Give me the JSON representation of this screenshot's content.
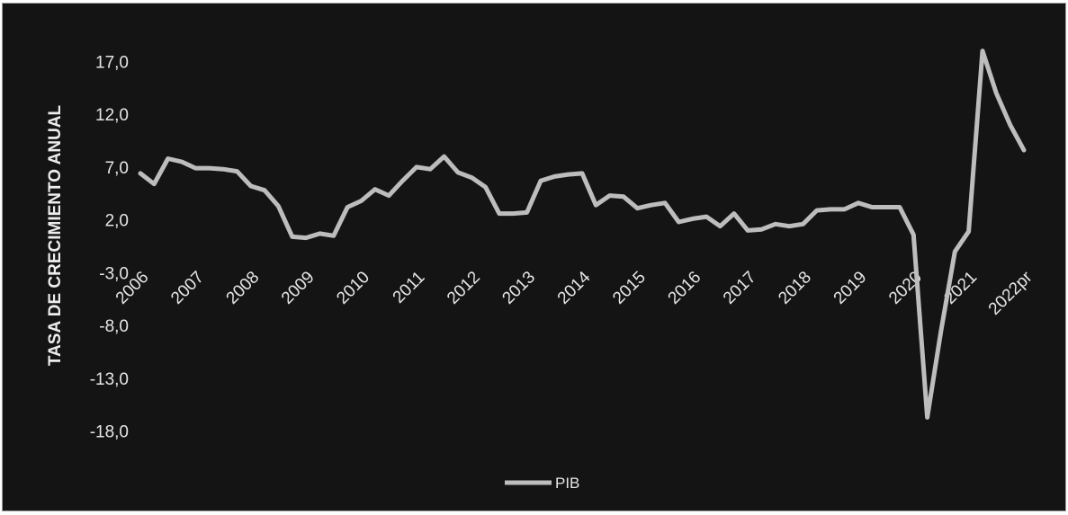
{
  "chart_data": {
    "type": "line",
    "ylabel": "TASA DE CRECIMIENTO ANUAL",
    "yticks": [
      "17,0",
      "12,0",
      "7,0",
      "2,0",
      "-3,0",
      "-8,0",
      "-13,0",
      "-18,0"
    ],
    "ylim": [
      -20.5,
      19.5
    ],
    "x_labels": [
      "2006",
      "2007",
      "2008",
      "2009",
      "2010",
      "2011",
      "2012",
      "2013",
      "2014",
      "2015",
      "2016",
      "2017",
      "2018",
      "2019",
      "2020",
      "2021",
      "2022pr"
    ],
    "grid": false,
    "legend_position": "bottom",
    "colors": {
      "background": "#141414",
      "line": "#bdbdbd",
      "text": "#e6e6e6"
    },
    "series": [
      {
        "name": "PIB",
        "values": [
          6.4,
          5.4,
          7.8,
          7.5,
          6.9,
          6.9,
          6.8,
          6.6,
          5.2,
          4.8,
          3.3,
          0.4,
          0.3,
          0.7,
          0.5,
          3.2,
          3.8,
          4.9,
          4.3,
          5.7,
          7.0,
          6.8,
          8.0,
          6.5,
          6.0,
          5.1,
          2.6,
          2.6,
          2.7,
          5.7,
          6.1,
          6.3,
          6.4,
          3.4,
          4.3,
          4.2,
          3.1,
          3.4,
          3.6,
          1.8,
          2.1,
          2.3,
          1.4,
          2.6,
          1.0,
          1.1,
          1.6,
          1.4,
          1.6,
          2.9,
          3.0,
          3.0,
          3.6,
          3.2,
          3.2,
          3.2,
          0.6,
          -16.7,
          -8.5,
          -1.0,
          0.9,
          18.0,
          14.0,
          11.0,
          8.6
        ]
      }
    ]
  }
}
